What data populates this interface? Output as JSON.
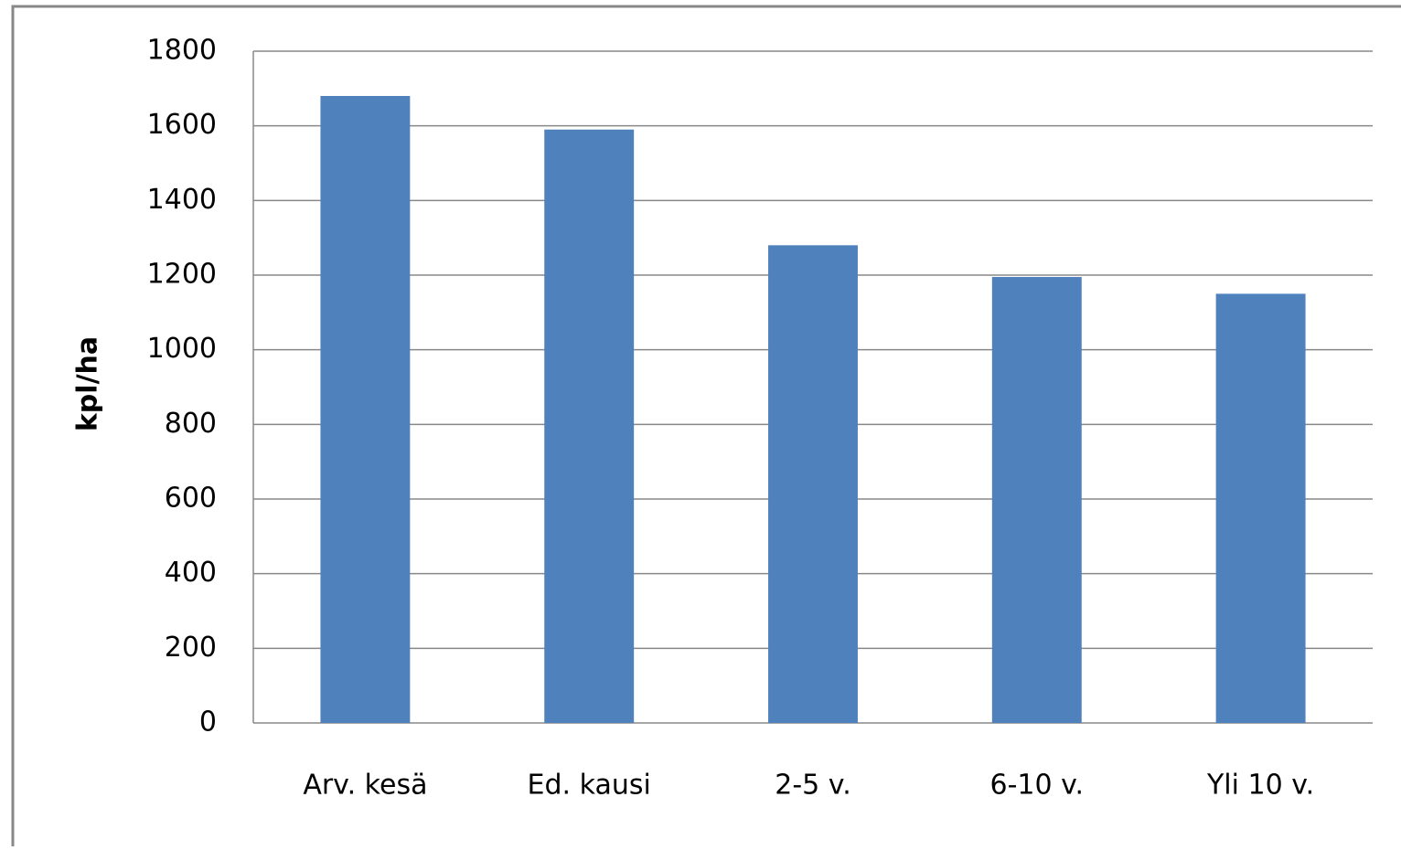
{
  "chart_data": {
    "type": "bar",
    "ylabel": "kpl/ha",
    "categories": [
      "Arv. kesä",
      "Ed. kausi",
      "2-5 v.",
      "6-10 v.",
      "Yli 10 v."
    ],
    "values": [
      1680,
      1590,
      1280,
      1195,
      1150
    ],
    "color": "#4f81bd",
    "ylim": [
      0,
      1800
    ],
    "yticks": [
      0,
      200,
      400,
      600,
      800,
      1000,
      1200,
      1400,
      1600,
      1800
    ],
    "grid": true
  }
}
